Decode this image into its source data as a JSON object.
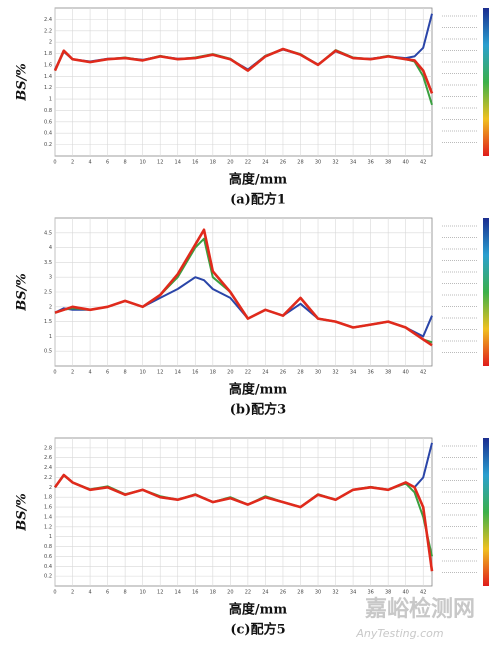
{
  "chart_data": [
    {
      "type": "line",
      "title": "(a)配方1",
      "x_label": "高度/mm",
      "y_label": "BS/%",
      "x": [
        0,
        1,
        2,
        4,
        6,
        8,
        10,
        12,
        14,
        16,
        18,
        20,
        22,
        24,
        26,
        28,
        30,
        32,
        34,
        36,
        38,
        40,
        41,
        42,
        43
      ],
      "xlim": [
        0,
        43
      ],
      "xticks": [
        0,
        2,
        4,
        6,
        8,
        10,
        12,
        14,
        16,
        18,
        20,
        22,
        24,
        26,
        28,
        30,
        32,
        34,
        36,
        38,
        40,
        42
      ],
      "ylim": [
        0,
        2.6
      ],
      "yticks": [
        0.2,
        0.4,
        0.6,
        0.8,
        1.0,
        1.2,
        1.4,
        1.6,
        1.8,
        2.0,
        2.2,
        2.4
      ],
      "grid": true,
      "series": [
        {
          "color": "#2a45a8",
          "values": [
            1.52,
            1.83,
            1.7,
            1.66,
            1.71,
            1.72,
            1.69,
            1.75,
            1.71,
            1.72,
            1.78,
            1.7,
            1.52,
            1.76,
            1.87,
            1.78,
            1.61,
            1.84,
            1.72,
            1.71,
            1.75,
            1.72,
            1.75,
            1.9,
            2.5
          ]
        },
        {
          "color": "#3aa040",
          "values": [
            1.5,
            1.84,
            1.7,
            1.65,
            1.7,
            1.73,
            1.68,
            1.76,
            1.7,
            1.73,
            1.79,
            1.71,
            1.5,
            1.76,
            1.88,
            1.79,
            1.6,
            1.86,
            1.73,
            1.7,
            1.76,
            1.7,
            1.66,
            1.4,
            0.9
          ]
        },
        {
          "color": "#e02a1c",
          "values": [
            1.5,
            1.85,
            1.7,
            1.65,
            1.7,
            1.72,
            1.68,
            1.75,
            1.7,
            1.72,
            1.78,
            1.7,
            1.5,
            1.75,
            1.88,
            1.78,
            1.6,
            1.85,
            1.72,
            1.7,
            1.75,
            1.7,
            1.68,
            1.5,
            1.1
          ]
        }
      ]
    },
    {
      "type": "line",
      "title": "(b)配方3",
      "x_label": "高度/mm",
      "y_label": "BS/%",
      "x": [
        0,
        1,
        2,
        4,
        6,
        8,
        10,
        12,
        14,
        16,
        17,
        18,
        20,
        22,
        24,
        26,
        28,
        30,
        32,
        34,
        36,
        38,
        40,
        42,
        43
      ],
      "xlim": [
        0,
        43
      ],
      "xticks": [
        0,
        2,
        4,
        6,
        8,
        10,
        12,
        14,
        16,
        18,
        20,
        22,
        24,
        26,
        28,
        30,
        32,
        34,
        36,
        38,
        40,
        42
      ],
      "ylim": [
        0,
        5
      ],
      "yticks": [
        0.5,
        1.0,
        1.5,
        2.0,
        2.5,
        3.0,
        3.5,
        4.0,
        4.5
      ],
      "grid": true,
      "series": [
        {
          "color": "#2a45a8",
          "values": [
            1.8,
            1.95,
            1.9,
            1.9,
            2.0,
            2.2,
            2.0,
            2.3,
            2.6,
            3.0,
            2.9,
            2.6,
            2.3,
            1.6,
            1.9,
            1.7,
            2.1,
            1.6,
            1.5,
            1.3,
            1.4,
            1.5,
            1.3,
            1.0,
            1.7
          ]
        },
        {
          "color": "#3aa040",
          "values": [
            1.8,
            1.9,
            1.95,
            1.9,
            2.0,
            2.2,
            2.0,
            2.4,
            3.0,
            4.0,
            4.3,
            3.0,
            2.5,
            1.6,
            1.9,
            1.7,
            2.3,
            1.6,
            1.5,
            1.3,
            1.4,
            1.5,
            1.3,
            0.9,
            0.8
          ]
        },
        {
          "color": "#e02a1c",
          "values": [
            1.8,
            1.9,
            2.0,
            1.9,
            2.0,
            2.2,
            2.0,
            2.4,
            3.1,
            4.1,
            4.6,
            3.2,
            2.5,
            1.6,
            1.9,
            1.7,
            2.3,
            1.6,
            1.5,
            1.3,
            1.4,
            1.5,
            1.3,
            0.9,
            0.7
          ]
        }
      ]
    },
    {
      "type": "line",
      "title": "(c)配方5",
      "x_label": "高度/mm",
      "y_label": "BS/%",
      "x": [
        0,
        1,
        2,
        4,
        6,
        8,
        10,
        12,
        14,
        16,
        18,
        20,
        22,
        24,
        26,
        28,
        30,
        32,
        34,
        36,
        38,
        40,
        41,
        42,
        43
      ],
      "xlim": [
        0,
        43
      ],
      "xticks": [
        0,
        2,
        4,
        6,
        8,
        10,
        12,
        14,
        16,
        18,
        20,
        22,
        24,
        26,
        28,
        30,
        32,
        34,
        36,
        38,
        40,
        42
      ],
      "ylim": [
        0,
        3
      ],
      "yticks": [
        0.2,
        0.4,
        0.6,
        0.8,
        1.0,
        1.2,
        1.4,
        1.6,
        1.8,
        2.0,
        2.2,
        2.4,
        2.6,
        2.8
      ],
      "grid": true,
      "series": [
        {
          "color": "#2a45a8",
          "values": [
            2.0,
            2.25,
            2.1,
            1.95,
            2.0,
            1.85,
            1.95,
            1.8,
            1.75,
            1.85,
            1.7,
            1.78,
            1.65,
            1.8,
            1.7,
            1.6,
            1.85,
            1.75,
            1.95,
            2.0,
            1.95,
            2.1,
            2.0,
            2.2,
            2.9
          ]
        },
        {
          "color": "#3aa040",
          "values": [
            2.0,
            2.24,
            2.1,
            1.96,
            2.02,
            1.86,
            1.95,
            1.82,
            1.75,
            1.86,
            1.7,
            1.8,
            1.65,
            1.82,
            1.7,
            1.6,
            1.86,
            1.75,
            1.95,
            2.01,
            1.95,
            2.08,
            1.9,
            1.4,
            0.6
          ]
        },
        {
          "color": "#e02a1c",
          "values": [
            2.0,
            2.25,
            2.1,
            1.95,
            2.0,
            1.85,
            1.95,
            1.8,
            1.75,
            1.85,
            1.7,
            1.78,
            1.65,
            1.8,
            1.7,
            1.6,
            1.85,
            1.75,
            1.95,
            2.0,
            1.95,
            2.1,
            2.0,
            1.6,
            0.3
          ]
        }
      ]
    }
  ],
  "watermark": [
    "嘉峪检测网",
    "AnyTesting.com"
  ]
}
